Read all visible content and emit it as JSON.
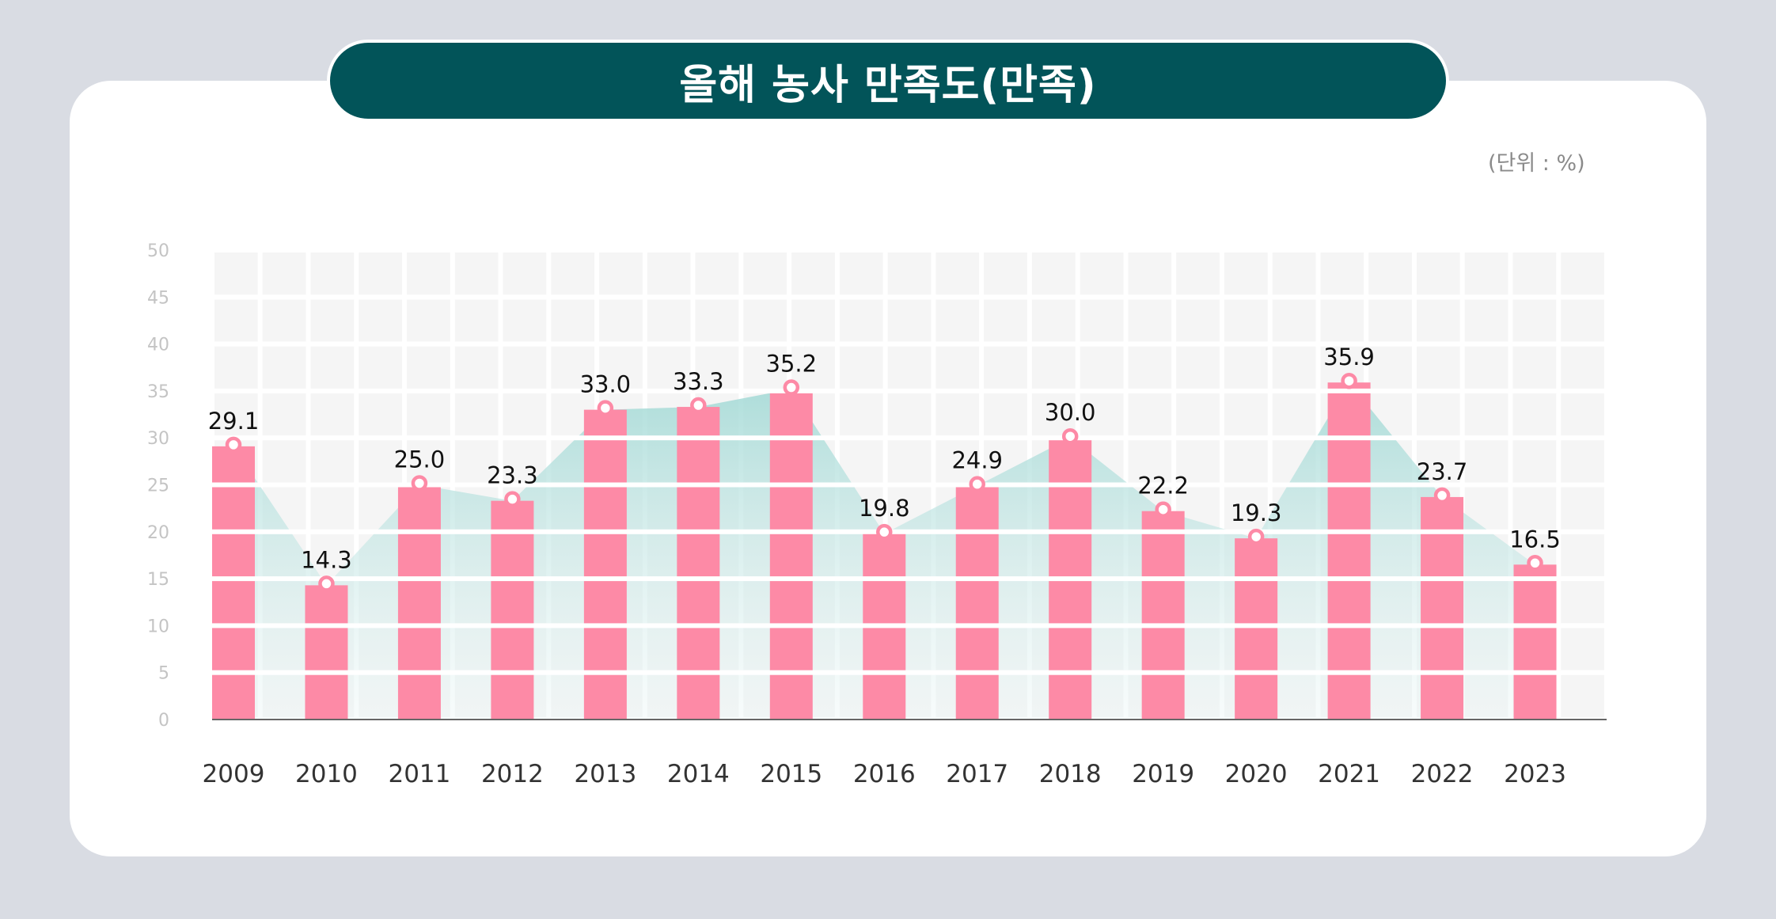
{
  "title": "올해 농사 만족도(만족)",
  "unit_label": "(단위 : %)",
  "colors": {
    "background": "#d9dce3",
    "card": "#ffffff",
    "banner": "#025459",
    "bar": "#fd8aa6",
    "area": "#9fd8d4",
    "grid_cell": "#f5f5f5",
    "axis": "#666666"
  },
  "chart_data": {
    "type": "bar",
    "title": "올해 농사 만족도(만족)",
    "xlabel": "",
    "ylabel": "(단위 : %)",
    "ylim": [
      0,
      50
    ],
    "yticks": [
      0,
      5,
      10,
      15,
      20,
      25,
      30,
      35,
      40,
      45,
      50
    ],
    "categories": [
      "2009",
      "2010",
      "2011",
      "2012",
      "2013",
      "2014",
      "2015",
      "2016",
      "2017",
      "2018",
      "2019",
      "2020",
      "2021",
      "2022",
      "2023"
    ],
    "values": [
      29.1,
      14.3,
      25.0,
      23.3,
      33.0,
      33.3,
      35.2,
      19.8,
      24.9,
      30.0,
      22.2,
      19.3,
      35.9,
      23.7,
      16.5
    ],
    "value_labels": [
      "29.1",
      "14.3",
      "25.0",
      "23.3",
      "33.0",
      "33.3",
      "35.2",
      "19.8",
      "24.9",
      "30.0",
      "22.2",
      "19.3",
      "35.9",
      "23.7",
      "16.5"
    ],
    "overlay": "area with point markers following values",
    "grid": true
  }
}
